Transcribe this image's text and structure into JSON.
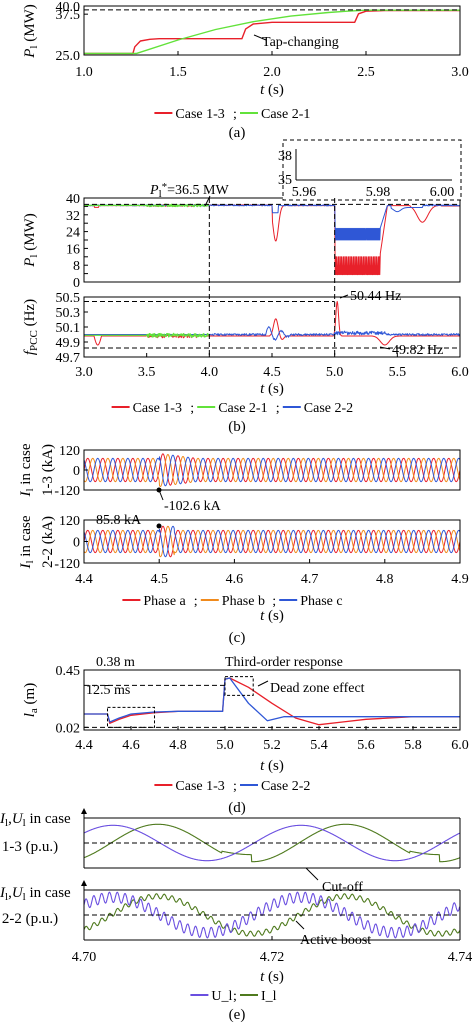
{
  "colors": {
    "case13": "#e8202a",
    "case21": "#62e23a",
    "case22": "#2f57d6",
    "phase_a": "#e8202a",
    "phase_b": "#f08a1c",
    "phase_c": "#2f57d6",
    "U": "#6a4fe0",
    "I": "#4f7a1e",
    "axis": "#000000",
    "dash": "#000000"
  },
  "chart_data": [
    {
      "id": "a",
      "type": "line",
      "panel_label": "(a)",
      "xlabel": "t (s)",
      "ylabel": "P_l (MW)",
      "xlim": [
        1.0,
        3.0
      ],
      "ylim": [
        25.0,
        40.0
      ],
      "xticks": [
        "1.0",
        "1.5",
        "2.0",
        "2.5",
        "3.0"
      ],
      "yticks": [
        "25.0",
        "37.5",
        "40.0"
      ],
      "reference_line": 38.8,
      "series": [
        {
          "name": "Case 1-3",
          "color": "case13",
          "x": [
            1.0,
            1.26,
            1.27,
            1.3,
            1.35,
            1.4,
            1.6,
            1.8,
            1.84,
            1.86,
            1.9,
            2.0,
            2.2,
            2.4,
            2.44,
            2.46,
            2.5,
            2.6,
            3.0
          ],
          "y": [
            25.5,
            25.5,
            27.5,
            29.3,
            29.8,
            30.0,
            30.0,
            30.0,
            30.0,
            33.0,
            34.5,
            35.0,
            35.0,
            35.0,
            35.0,
            37.6,
            38.4,
            38.6,
            38.6
          ]
        },
        {
          "name": "Case 2-1",
          "color": "case21",
          "x": [
            1.0,
            1.28,
            1.5,
            1.7,
            1.9,
            2.1,
            2.3,
            2.4,
            2.5,
            3.0
          ],
          "y": [
            25.5,
            25.5,
            29.6,
            32.8,
            35.2,
            36.9,
            38.0,
            38.4,
            38.7,
            38.7
          ]
        }
      ],
      "annotations": [
        "Tap-changing"
      ]
    },
    {
      "id": "b1",
      "type": "line",
      "xlabel": "",
      "ylabel": "P_l (MW)",
      "xlim": [
        3.0,
        6.0
      ],
      "ylim": [
        0,
        40
      ],
      "yticks": [
        "40",
        "36",
        "32",
        "28",
        "24",
        "20",
        "16",
        "12",
        "8",
        "4",
        "0"
      ],
      "reference_label": "P_l* = 36.5 MW",
      "reference_line": 36.5,
      "inset": {
        "xlim": [
          5.96,
          6.0
        ],
        "ylim": [
          35,
          38
        ],
        "xticks": [
          "5.96",
          "5.98",
          "6.00"
        ],
        "yticks": [
          "38",
          "35"
        ]
      },
      "series": [
        {
          "name": "Case 1-3",
          "color": "case13"
        },
        {
          "name": "Case 2-1",
          "color": "case21"
        },
        {
          "name": "Case 2-2",
          "color": "case22"
        }
      ]
    },
    {
      "id": "b2",
      "type": "line",
      "panel_label": "(b)",
      "xlabel": "t (s)",
      "ylabel": "f_PCC (Hz)",
      "xlim": [
        3.0,
        6.0
      ],
      "ylim": [
        49.7,
        50.5
      ],
      "xticks": [
        "3.0",
        "3.5",
        "4.0",
        "4.5",
        "5.0",
        "5.5",
        "6.0"
      ],
      "yticks": [
        "50.5",
        "50.3",
        "50.1",
        "49.9",
        "49.7"
      ],
      "annotations": [
        "50.44 Hz",
        "49.82 Hz"
      ],
      "series": [
        {
          "name": "Case 1-3",
          "color": "case13"
        },
        {
          "name": "Case 2-1",
          "color": "case21"
        },
        {
          "name": "Case 2-2",
          "color": "case22"
        }
      ]
    },
    {
      "id": "c1",
      "type": "line",
      "xlabel": "",
      "ylabel": "I_l in case 1-3 (kA)",
      "xlim": [
        4.4,
        4.9
      ],
      "ylim": [
        -120,
        120
      ],
      "yticks": [
        "120",
        "0",
        "-120"
      ],
      "annotations": [
        "-102.6 kA"
      ],
      "series": [
        {
          "name": "Phase a",
          "color": "phase_a"
        },
        {
          "name": "Phase b",
          "color": "phase_b"
        },
        {
          "name": "Phase c",
          "color": "phase_c"
        }
      ]
    },
    {
      "id": "c2",
      "type": "line",
      "panel_label": "(c)",
      "xlabel": "t (s)",
      "ylabel": "I_l in case 2-2 (kA)",
      "xlim": [
        4.4,
        4.9
      ],
      "ylim": [
        -120,
        120
      ],
      "xticks": [
        "4.4",
        "4.5",
        "4.6",
        "4.7",
        "4.8",
        "4.9"
      ],
      "yticks": [
        "120",
        "0",
        "-120"
      ],
      "annotations": [
        "85.8 kA"
      ],
      "series": [
        {
          "name": "Phase a",
          "color": "phase_a"
        },
        {
          "name": "Phase b",
          "color": "phase_b"
        },
        {
          "name": "Phase c",
          "color": "phase_c"
        }
      ]
    },
    {
      "id": "d",
      "type": "line",
      "panel_label": "(d)",
      "xlabel": "t (s)",
      "ylabel": "l_a (m)",
      "xlim": [
        4.4,
        6.0
      ],
      "ylim": [
        0.0,
        0.45
      ],
      "xticks": [
        "4.4",
        "4.6",
        "4.8",
        "5.0",
        "5.2",
        "5.4",
        "5.6",
        "5.8",
        "6.0"
      ],
      "yticks": [
        "0.45",
        "0.02"
      ],
      "annotations": [
        "0.38 m",
        "Third-order response",
        "12.5 ms",
        "Dead zone effect"
      ],
      "series": [
        {
          "name": "Case 1-3",
          "color": "case13",
          "x": [
            4.4,
            4.5,
            4.51,
            4.55,
            4.6,
            4.7,
            4.8,
            4.9,
            4.99,
            5.0,
            5.02,
            5.1,
            5.2,
            5.3,
            5.4,
            5.5,
            5.6,
            5.7,
            5.8,
            6.0
          ],
          "y": [
            0.12,
            0.12,
            0.05,
            0.08,
            0.11,
            0.13,
            0.14,
            0.14,
            0.14,
            0.38,
            0.39,
            0.32,
            0.2,
            0.09,
            0.04,
            0.06,
            0.08,
            0.09,
            0.1,
            0.1
          ]
        },
        {
          "name": "Case 2-2",
          "color": "case22",
          "x": [
            4.4,
            4.5,
            4.51,
            4.55,
            4.6,
            4.7,
            4.8,
            4.9,
            4.99,
            5.0,
            5.02,
            5.1,
            5.18,
            5.25,
            5.4,
            5.6,
            5.8,
            6.0
          ],
          "y": [
            0.12,
            0.12,
            0.06,
            0.09,
            0.12,
            0.135,
            0.14,
            0.14,
            0.14,
            0.38,
            0.39,
            0.2,
            0.07,
            0.1,
            0.1,
            0.1,
            0.1,
            0.1
          ]
        }
      ]
    },
    {
      "id": "e1",
      "type": "line",
      "ylabel": "I_l, U_l in case 1-3 (p.u.)",
      "annotations": [
        "Cut-off"
      ],
      "series": [
        {
          "name": "U_l",
          "color": "U"
        },
        {
          "name": "I_l",
          "color": "I"
        }
      ]
    },
    {
      "id": "e2",
      "type": "line",
      "panel_label": "(e)",
      "xlabel": "t (s)",
      "ylabel": "I_l, U_l in case 2-2 (p.u.)",
      "xlim": [
        4.7,
        4.74
      ],
      "xticks": [
        "4.70",
        "4.72",
        "4.74"
      ],
      "annotations": [
        "Active boost"
      ],
      "series": [
        {
          "name": "U_l",
          "color": "U"
        },
        {
          "name": "I_l",
          "color": "I"
        }
      ]
    }
  ],
  "legends": {
    "a": [
      {
        "label": "Case 1-3",
        "sep": ";"
      },
      {
        "label": "Case 2-1",
        "sep": ""
      }
    ],
    "b": [
      {
        "label": "Case 1-3",
        "sep": ";"
      },
      {
        "label": "Case 2-1",
        "sep": ";"
      },
      {
        "label": "Case 2-2",
        "sep": ""
      }
    ],
    "c": [
      {
        "label": "Phase a",
        "sep": ";"
      },
      {
        "label": "Phase b",
        "sep": ";"
      },
      {
        "label": "Phase c",
        "sep": ""
      }
    ],
    "d": [
      {
        "label": "Case 1-3",
        "sep": ";"
      },
      {
        "label": "Case 2-2",
        "sep": ""
      }
    ],
    "e": [
      {
        "label": "U_l",
        "sep": ";"
      },
      {
        "label": "I_l",
        "sep": ""
      }
    ]
  }
}
